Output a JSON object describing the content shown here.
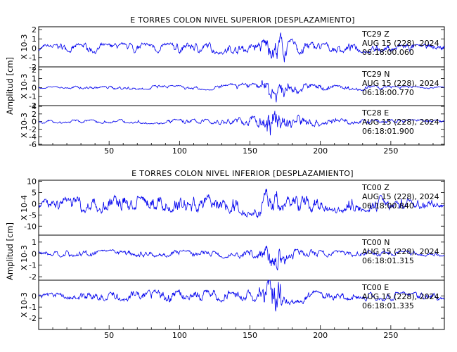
{
  "chart_data": [
    {
      "type": "line",
      "title": "E TORRES COLON NIVEL SUPERIOR [DESPLAZAMIENTO]",
      "ylabel": "Amplitud [cm]",
      "xlim": [
        0,
        288
      ],
      "x_ticks": [
        "50",
        "100",
        "150",
        "200",
        "250"
      ],
      "series": [
        {
          "station": "TC29",
          "component": "Z",
          "date": "AUG 15 (228), 2024",
          "time": "06:18:00.060",
          "scale": "X 10-3",
          "ylim": [
            -2,
            2.3
          ],
          "y_ticks": [
            "2",
            "1",
            "0",
            "-1",
            "-2"
          ],
          "envelope": [
            0.6,
            0.7,
            0.8,
            0.8,
            0.9,
            0.9,
            0.8,
            0.9,
            1.0,
            0.9,
            0.8,
            0.9,
            1.0,
            1.0,
            0.9,
            1.0,
            1.0,
            0.9,
            1.0,
            1.0,
            1.8,
            1.9,
            1.7,
            1.3,
            1.0,
            0.9,
            0.9,
            0.8,
            0.8,
            0.8,
            0.8,
            0.8,
            0.8,
            0.7,
            0.7,
            0.6
          ]
        },
        {
          "station": "TC29",
          "component": "N",
          "date": "AUG 15 (228), 2024",
          "time": "06:18:00.770",
          "scale": "X 10-3",
          "ylim": [
            -2,
            2.3
          ],
          "y_ticks": [
            "2",
            "1",
            "0",
            "-1",
            "-2"
          ],
          "envelope": [
            0.2,
            0.2,
            0.2,
            0.3,
            0.3,
            0.3,
            0.3,
            0.4,
            0.4,
            0.4,
            0.4,
            0.4,
            0.4,
            0.4,
            0.4,
            0.5,
            0.6,
            0.7,
            0.8,
            1.0,
            2.0,
            1.6,
            1.2,
            0.9,
            0.8,
            0.6,
            0.5,
            0.5,
            0.5,
            0.4,
            0.3,
            0.3,
            0.3,
            0.2,
            0.2,
            0.2
          ]
        },
        {
          "station": "TC28",
          "component": "E",
          "date": "AUG 15 (228), 2024",
          "time": "06:18:01.900",
          "scale": "X 10-3",
          "ylim": [
            -6.2,
            4.2
          ],
          "y_ticks": [
            "4",
            "2",
            "0",
            "-2",
            "-4",
            "-6"
          ],
          "envelope": [
            0.8,
            0.8,
            0.9,
            0.9,
            0.9,
            0.9,
            0.9,
            0.9,
            1.0,
            1.0,
            1.0,
            1.1,
            1.1,
            1.1,
            1.2,
            1.4,
            1.6,
            1.8,
            2.2,
            2.8,
            5.8,
            4.2,
            3.6,
            2.8,
            2.2,
            1.6,
            1.4,
            1.2,
            1.1,
            1.0,
            1.0,
            0.9,
            0.9,
            0.9,
            0.8,
            0.8
          ]
        }
      ]
    },
    {
      "type": "line",
      "title": "E TORRES COLON NIVEL INFERIOR [DESPLAZAMIENTO]",
      "ylabel": "Amplitud [cm]",
      "xlim": [
        0,
        288
      ],
      "x_ticks": [
        "50",
        "100",
        "150",
        "200",
        "250"
      ],
      "series": [
        {
          "station": "TC00",
          "component": "Z",
          "date": "AUG 15 (228), 2024",
          "time": "06:18:00.840",
          "scale": "X 10-4",
          "ylim": [
            -14,
            10.5
          ],
          "y_ticks": [
            "10",
            "5",
            "0",
            "-5",
            "-10"
          ],
          "envelope": [
            4.0,
            5.0,
            5.5,
            6.0,
            6.5,
            7.0,
            7.0,
            7.0,
            6.5,
            6.5,
            6.5,
            7.0,
            7.5,
            8.0,
            7.5,
            7.0,
            7.0,
            8.0,
            9.5,
            9.0,
            8.0,
            7.5,
            7.0,
            6.5,
            6.5,
            6.5,
            6.5,
            6.5,
            6.0,
            6.0,
            5.5,
            5.5,
            5.0,
            4.5,
            3.5,
            3.0
          ]
        },
        {
          "station": "TC00",
          "component": "N",
          "date": "AUG 15 (228), 2024",
          "time": "06:18:01.315",
          "scale": "X 10-3",
          "ylim": [
            -2.3,
            1.6
          ],
          "y_ticks": [
            "1",
            "0",
            "-1",
            "-2"
          ],
          "envelope": [
            0.4,
            0.4,
            0.5,
            0.5,
            0.5,
            0.5,
            0.5,
            0.5,
            0.5,
            0.5,
            0.5,
            0.5,
            0.5,
            0.5,
            0.5,
            0.5,
            0.6,
            0.6,
            0.7,
            0.8,
            1.6,
            1.2,
            0.9,
            0.7,
            0.6,
            0.5,
            0.5,
            0.5,
            0.5,
            0.5,
            0.4,
            0.4,
            0.4,
            0.4,
            0.4,
            0.4
          ]
        },
        {
          "station": "TC00",
          "component": "E",
          "date": "AUG 15 (228), 2024",
          "time": "06:18:01.335",
          "scale": "X 10-3",
          "ylim": [
            -3,
            1.4
          ],
          "y_ticks": [
            "0",
            "-1",
            "-2"
          ],
          "envelope": [
            0.4,
            0.5,
            0.5,
            0.6,
            0.6,
            0.7,
            0.8,
            0.8,
            0.9,
            0.9,
            0.9,
            1.0,
            1.0,
            0.9,
            0.9,
            0.9,
            0.9,
            0.9,
            0.9,
            1.0,
            2.8,
            1.6,
            1.2,
            1.0,
            0.8,
            0.7,
            0.7,
            0.7,
            0.7,
            0.7,
            0.7,
            0.6,
            0.6,
            0.6,
            0.6,
            0.6
          ]
        }
      ]
    }
  ]
}
